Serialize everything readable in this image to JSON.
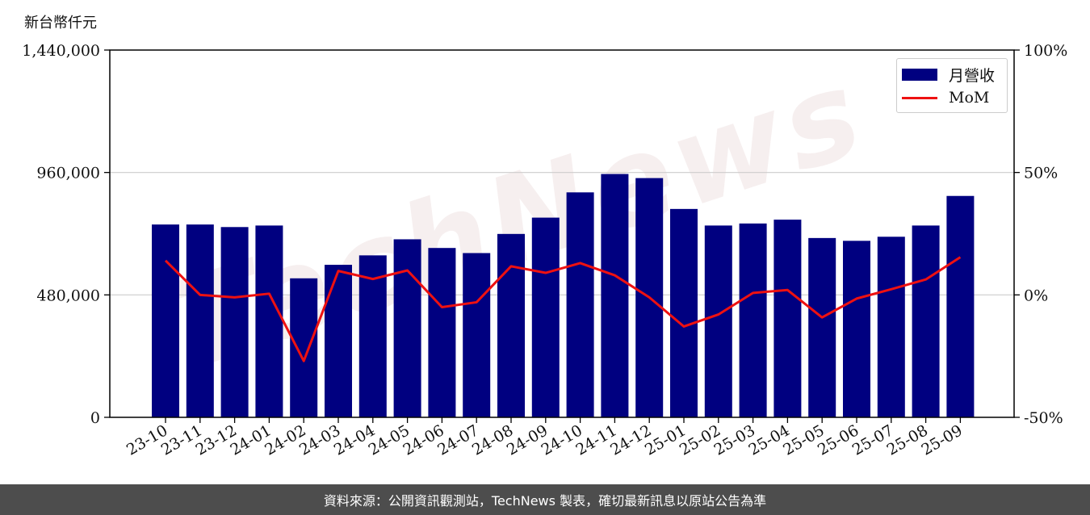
{
  "unit_label": "新台幣仟元",
  "footer_text": "資料來源：公開資訊觀測站，TechNews 製表，確切最新訊息以原站公告為準",
  "watermark": "TechNews",
  "colors": {
    "bar": "#000080",
    "line": "#ee1111",
    "footer_bg": "#4d4d4d",
    "grid": "#cccccc"
  },
  "chart_data": {
    "type": "bar",
    "categories": [
      "23-10",
      "23-11",
      "23-12",
      "24-01",
      "24-02",
      "24-03",
      "24-04",
      "24-05",
      "24-06",
      "24-07",
      "24-08",
      "24-09",
      "24-10",
      "24-11",
      "24-12",
      "25-01",
      "25-02",
      "25-03",
      "25-04",
      "25-05",
      "25-06",
      "25-07",
      "25-08",
      "25-09"
    ],
    "series": [
      {
        "name": "月營收",
        "axis": "left",
        "type": "bar",
        "values": [
          756000,
          756000,
          746000,
          752000,
          545000,
          598000,
          635000,
          698000,
          664000,
          644000,
          719000,
          783000,
          882000,
          954000,
          938000,
          817000,
          752000,
          760000,
          775000,
          703000,
          692000,
          708000,
          752000,
          868000
        ]
      },
      {
        "name": "MoM",
        "axis": "right",
        "type": "line",
        "values": [
          14,
          0,
          -1,
          0.5,
          -27,
          9.8,
          6.5,
          10,
          -5,
          -3,
          11.7,
          9,
          13,
          8,
          -1,
          -12.9,
          -8,
          0.8,
          2,
          -9.2,
          -1.5,
          2.3,
          6.3,
          15.4
        ]
      }
    ],
    "y_left": {
      "lim": [
        0,
        1440000
      ],
      "ticks": [
        "0",
        "480,000",
        "960,000",
        "1,440,000"
      ]
    },
    "y_right": {
      "lim": [
        -50,
        100
      ],
      "ticks": [
        "-50%",
        "0%",
        "50%",
        "100%"
      ]
    },
    "grid": "horizontal",
    "legend_position": "top-right"
  }
}
